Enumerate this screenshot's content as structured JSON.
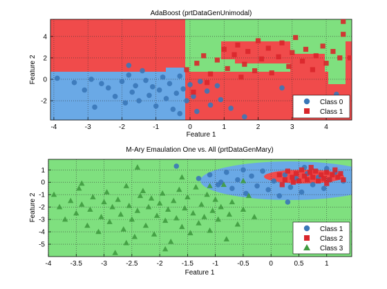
{
  "colors": {
    "class0_region": "#6aa9e6",
    "class1_region": "#f04b4b",
    "region_green": "#7fe07f",
    "marker_blue": "#3a77b8",
    "marker_red": "#d9262b",
    "marker_green": "#3f9b3f"
  },
  "chart_data": [
    {
      "type": "scatter",
      "title": "AdaBoost (prtDataGenUnimodal)",
      "xlabel": "Feature 1",
      "ylabel": "Feature 2",
      "xlim": [
        -4.1,
        4.75
      ],
      "ylim": [
        -3.8,
        5.6
      ],
      "xticks": [
        -4,
        -3,
        -2,
        -1,
        0,
        1,
        2,
        3,
        4
      ],
      "yticks": [
        -2,
        0,
        2,
        4
      ],
      "grid": true,
      "legend_position": "bottom-right",
      "legend": [
        {
          "label": "Class 0",
          "marker": "circle",
          "color": "#3a77b8"
        },
        {
          "label": "Class 1",
          "marker": "square",
          "color": "#d9262b"
        }
      ],
      "series": [
        {
          "name": "Class 0",
          "marker": "circle",
          "color": "#3a77b8",
          "points": [
            [
              -3.9,
              0.1
            ],
            [
              -3.4,
              -0.3
            ],
            [
              -3.1,
              -1.0
            ],
            [
              -2.9,
              0.0
            ],
            [
              -2.6,
              -0.4
            ],
            [
              -2.4,
              -0.8
            ],
            [
              -2.2,
              -1.6
            ],
            [
              -2.0,
              -0.2
            ],
            [
              -1.9,
              -2.2
            ],
            [
              -1.8,
              0.4
            ],
            [
              -1.7,
              -1.2
            ],
            [
              -1.6,
              -0.6
            ],
            [
              -1.5,
              -2.0
            ],
            [
              -1.4,
              0.8
            ],
            [
              -1.3,
              -0.1
            ],
            [
              -1.2,
              -1.5
            ],
            [
              -1.1,
              -0.7
            ],
            [
              -1.0,
              -2.5
            ],
            [
              -0.9,
              -1.0
            ],
            [
              -0.8,
              0.2
            ],
            [
              -0.7,
              -1.8
            ],
            [
              -0.6,
              -0.4
            ],
            [
              -0.5,
              -2.8
            ],
            [
              -0.4,
              -1.3
            ],
            [
              -0.3,
              0.3
            ],
            [
              -0.2,
              -0.9
            ],
            [
              -0.1,
              -2.0
            ],
            [
              0.0,
              -0.5
            ],
            [
              0.1,
              -1.6
            ],
            [
              0.2,
              -3.0
            ],
            [
              0.3,
              -0.2
            ],
            [
              0.5,
              -1.1
            ],
            [
              0.6,
              -2.4
            ],
            [
              0.8,
              -0.6
            ],
            [
              0.9,
              -1.9
            ],
            [
              1.2,
              -2.7
            ],
            [
              -1.8,
              1.3
            ],
            [
              -0.3,
              -3.2
            ],
            [
              2.7,
              -0.8
            ],
            [
              4.3,
              -1.4
            ],
            [
              1.6,
              -3.5
            ],
            [
              -2.8,
              -2.6
            ]
          ]
        },
        {
          "name": "Class 1",
          "marker": "square",
          "color": "#d9262b",
          "points": [
            [
              -0.1,
              0.9
            ],
            [
              0.2,
              1.5
            ],
            [
              0.4,
              2.2
            ],
            [
              0.6,
              0.5
            ],
            [
              0.8,
              1.8
            ],
            [
              1.0,
              2.8
            ],
            [
              1.1,
              1.0
            ],
            [
              1.3,
              2.3
            ],
            [
              1.4,
              3.2
            ],
            [
              1.6,
              1.4
            ],
            [
              1.7,
              2.6
            ],
            [
              1.9,
              0.8
            ],
            [
              2.0,
              3.6
            ],
            [
              2.1,
              1.9
            ],
            [
              2.3,
              2.9
            ],
            [
              2.4,
              0.6
            ],
            [
              2.6,
              2.1
            ],
            [
              2.7,
              3.4
            ],
            [
              2.9,
              1.2
            ],
            [
              3.0,
              2.5
            ],
            [
              3.1,
              3.9
            ],
            [
              3.3,
              1.7
            ],
            [
              3.4,
              2.8
            ],
            [
              3.6,
              0.9
            ],
            [
              3.7,
              2.2
            ],
            [
              3.9,
              3.1
            ],
            [
              4.0,
              1.5
            ],
            [
              4.2,
              2.6
            ],
            [
              4.4,
              2.0
            ],
            [
              4.5,
              5.4
            ],
            [
              4.5,
              4.2
            ],
            [
              0.5,
              -0.3
            ],
            [
              0.1,
              -1.2
            ],
            [
              1.5,
              0.2
            ],
            [
              4.7,
              2.0
            ]
          ]
        }
      ]
    },
    {
      "type": "scatter",
      "title": "M-Ary Emaulation One vs. All (prtDataGenMary)",
      "xlabel": "Feature 1",
      "ylabel": "Feature 2",
      "xlim": [
        -4,
        1.45
      ],
      "ylim": [
        -6,
        1.85
      ],
      "xticks": [
        -4,
        -3.5,
        -3,
        -2.5,
        -2,
        -1.5,
        -1,
        -0.5,
        0,
        0.5,
        1
      ],
      "yticks": [
        -5,
        -4,
        -3,
        -2,
        -1,
        0,
        1
      ],
      "grid": true,
      "legend_position": "bottom-right",
      "legend": [
        {
          "label": "Class 1",
          "marker": "circle",
          "color": "#3a77b8"
        },
        {
          "label": "Class 2",
          "marker": "square",
          "color": "#d9262b"
        },
        {
          "label": "Class 3",
          "marker": "triangle",
          "color": "#3f9b3f"
        }
      ],
      "series": [
        {
          "name": "Class 1",
          "marker": "circle",
          "color": "#3a77b8",
          "points": [
            [
              -1.7,
              1.3
            ],
            [
              -1.3,
              0.3
            ],
            [
              -1.1,
              0.6
            ],
            [
              -0.95,
              -0.2
            ],
            [
              -0.8,
              0.8
            ],
            [
              -0.7,
              -0.5
            ],
            [
              -0.6,
              0.2
            ],
            [
              -0.5,
              1.0
            ],
            [
              -0.45,
              -0.9
            ],
            [
              -0.35,
              0.5
            ],
            [
              -0.25,
              -0.3
            ],
            [
              -0.15,
              0.9
            ],
            [
              -0.05,
              -0.6
            ],
            [
              0.05,
              0.1
            ],
            [
              0.15,
              -1.1
            ],
            [
              0.25,
              0.6
            ],
            [
              0.35,
              -0.4
            ],
            [
              0.45,
              0.3
            ],
            [
              0.55,
              -0.8
            ],
            [
              0.65,
              0.7
            ],
            [
              0.75,
              -0.2
            ],
            [
              0.85,
              0.4
            ],
            [
              0.95,
              -0.5
            ],
            [
              1.05,
              0.2
            ],
            [
              1.15,
              0.8
            ],
            [
              1.3,
              0.1
            ],
            [
              0.3,
              -1.6
            ],
            [
              -0.9,
              0.0
            ],
            [
              0.6,
              1.2
            ],
            [
              1.0,
              1.1
            ]
          ]
        },
        {
          "name": "Class 2",
          "marker": "square",
          "color": "#d9262b",
          "points": [
            [
              0.15,
              0.6
            ],
            [
              0.25,
              0.2
            ],
            [
              0.3,
              0.9
            ],
            [
              0.38,
              0.4
            ],
            [
              0.45,
              0.7
            ],
            [
              0.5,
              0.1
            ],
            [
              0.55,
              1.0
            ],
            [
              0.6,
              0.5
            ],
            [
              0.65,
              0.2
            ],
            [
              0.7,
              0.8
            ],
            [
              0.75,
              0.4
            ],
            [
              0.8,
              0.9
            ],
            [
              0.85,
              0.1
            ],
            [
              0.9,
              0.6
            ],
            [
              0.95,
              0.3
            ],
            [
              1.0,
              0.8
            ],
            [
              1.05,
              0.2
            ],
            [
              1.1,
              0.6
            ],
            [
              1.15,
              1.0
            ],
            [
              1.2,
              0.4
            ],
            [
              1.25,
              0.7
            ],
            [
              1.3,
              0.2
            ],
            [
              0.4,
              0.0
            ],
            [
              0.72,
              1.2
            ],
            [
              1.0,
              -0.1
            ],
            [
              0.2,
              -0.2
            ]
          ]
        },
        {
          "name": "Class 3",
          "marker": "triangle",
          "color": "#3f9b3f",
          "points": [
            [
              -3.9,
              -1.0
            ],
            [
              -3.8,
              -2.0
            ],
            [
              -3.7,
              -3.0
            ],
            [
              -3.6,
              -1.5
            ],
            [
              -3.5,
              -2.5
            ],
            [
              -3.45,
              -0.5
            ],
            [
              -3.4,
              -1.8
            ],
            [
              -3.3,
              -3.5
            ],
            [
              -3.25,
              -2.2
            ],
            [
              -3.2,
              -1.2
            ],
            [
              -3.1,
              -4.0
            ],
            [
              -3.05,
              -2.8
            ],
            [
              -3.0,
              -1.6
            ],
            [
              -2.95,
              -0.8
            ],
            [
              -2.9,
              -3.2
            ],
            [
              -2.85,
              -2.0
            ],
            [
              -2.8,
              -5.7
            ],
            [
              -2.75,
              -1.4
            ],
            [
              -2.7,
              -2.6
            ],
            [
              -2.65,
              -3.8
            ],
            [
              -2.6,
              -0.3
            ],
            [
              -2.55,
              -1.9
            ],
            [
              -2.5,
              -3.0
            ],
            [
              -2.45,
              -4.4
            ],
            [
              -2.4,
              -2.3
            ],
            [
              -2.35,
              -1.1
            ],
            [
              -2.3,
              -0.7
            ],
            [
              -2.25,
              -3.5
            ],
            [
              -2.2,
              -2.0
            ],
            [
              -2.15,
              -1.3
            ],
            [
              -2.1,
              -4.2
            ],
            [
              -2.05,
              -2.7
            ],
            [
              -2.0,
              -1.7
            ],
            [
              -1.95,
              -0.9
            ],
            [
              -1.9,
              -3.1
            ],
            [
              -1.85,
              -2.2
            ],
            [
              -1.8,
              -4.8
            ],
            [
              -1.75,
              -1.5
            ],
            [
              -1.7,
              -2.9
            ],
            [
              -1.65,
              -0.6
            ],
            [
              -1.6,
              -3.6
            ],
            [
              -1.55,
              -2.1
            ],
            [
              -1.5,
              -1.2
            ],
            [
              -1.45,
              -4.1
            ],
            [
              -1.4,
              -2.5
            ],
            [
              -1.35,
              -0.4
            ],
            [
              -1.3,
              -3.3
            ],
            [
              -1.25,
              -1.8
            ],
            [
              -1.2,
              -2.8
            ],
            [
              -1.15,
              -1.0
            ],
            [
              -1.1,
              -3.9
            ],
            [
              -1.05,
              -2.3
            ],
            [
              -1.0,
              -1.4
            ],
            [
              -0.95,
              -3.0
            ],
            [
              -0.9,
              -2.0
            ],
            [
              -0.85,
              -0.2
            ],
            [
              -0.8,
              -4.6
            ],
            [
              -0.75,
              -2.6
            ],
            [
              -0.7,
              -1.6
            ],
            [
              -0.6,
              -3.4
            ],
            [
              -0.5,
              -2.2
            ],
            [
              -0.4,
              -1.1
            ],
            [
              -0.3,
              -2.8
            ],
            [
              -2.4,
              1.2
            ],
            [
              -1.6,
              0.4
            ],
            [
              -1.1,
              -0.3
            ],
            [
              -0.5,
              0.1
            ],
            [
              -3.4,
              -0.1
            ],
            [
              -2.6,
              -4.9
            ],
            [
              -1.9,
              -5.4
            ]
          ]
        }
      ]
    }
  ]
}
